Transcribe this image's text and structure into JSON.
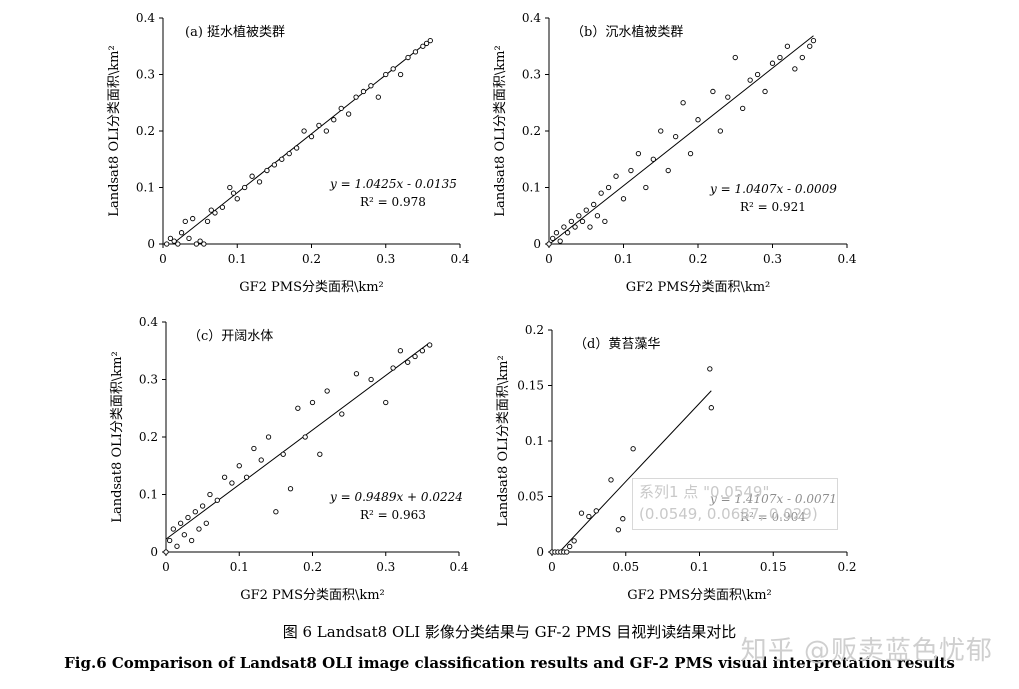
{
  "chart_data": [
    {
      "type": "scatter",
      "panel_title": "(a) 挺水植被类群",
      "xlabel": "GF2 PMS分类面积\\km²",
      "ylabel": "Landsat8 OLI分类面积\\km²",
      "xlim": [
        0,
        0.4
      ],
      "ylim": [
        0,
        0.4
      ],
      "xticks": [
        "0",
        "0.1",
        "0.2",
        "0.3",
        "0.4"
      ],
      "yticks": [
        "0",
        "0.1",
        "0.2",
        "0.3",
        "0.4"
      ],
      "trendline": {
        "slope": 1.0425,
        "intercept": -0.0135
      },
      "equation": "y = 1.0425x - 0.0135",
      "r2": "R² = 0.978",
      "points": [
        [
          0.005,
          0.0
        ],
        [
          0.01,
          0.01
        ],
        [
          0.015,
          0.005
        ],
        [
          0.02,
          0.0
        ],
        [
          0.025,
          0.02
        ],
        [
          0.03,
          0.04
        ],
        [
          0.035,
          0.01
        ],
        [
          0.04,
          0.045
        ],
        [
          0.045,
          0.0
        ],
        [
          0.05,
          0.005
        ],
        [
          0.055,
          0.0
        ],
        [
          0.06,
          0.04
        ],
        [
          0.065,
          0.06
        ],
        [
          0.07,
          0.055
        ],
        [
          0.08,
          0.065
        ],
        [
          0.09,
          0.1
        ],
        [
          0.095,
          0.09
        ],
        [
          0.1,
          0.08
        ],
        [
          0.11,
          0.1
        ],
        [
          0.12,
          0.12
        ],
        [
          0.13,
          0.11
        ],
        [
          0.14,
          0.13
        ],
        [
          0.15,
          0.14
        ],
        [
          0.16,
          0.15
        ],
        [
          0.17,
          0.16
        ],
        [
          0.18,
          0.17
        ],
        [
          0.19,
          0.2
        ],
        [
          0.2,
          0.19
        ],
        [
          0.21,
          0.21
        ],
        [
          0.22,
          0.2
        ],
        [
          0.23,
          0.22
        ],
        [
          0.24,
          0.24
        ],
        [
          0.25,
          0.23
        ],
        [
          0.26,
          0.26
        ],
        [
          0.27,
          0.27
        ],
        [
          0.28,
          0.28
        ],
        [
          0.29,
          0.26
        ],
        [
          0.3,
          0.3
        ],
        [
          0.31,
          0.31
        ],
        [
          0.32,
          0.3
        ],
        [
          0.33,
          0.33
        ],
        [
          0.34,
          0.34
        ],
        [
          0.35,
          0.35
        ],
        [
          0.355,
          0.355
        ],
        [
          0.36,
          0.36
        ]
      ]
    },
    {
      "type": "scatter",
      "panel_title": "（b）沉水植被类群",
      "xlabel": "GF2 PMS分类面积\\km²",
      "ylabel": "Landsat8 OLI分类面积\\km²",
      "xlim": [
        0,
        0.4
      ],
      "ylim": [
        0,
        0.4
      ],
      "xticks": [
        "0",
        "0.1",
        "0.2",
        "0.3",
        "0.4"
      ],
      "yticks": [
        "0",
        "0.1",
        "0.2",
        "0.3",
        "0.4"
      ],
      "trendline": {
        "slope": 1.0407,
        "intercept": -0.0009
      },
      "equation": "y = 1.0407x - 0.0009",
      "r2": "R² = 0.921",
      "points": [
        [
          0.0,
          0.0
        ],
        [
          0.005,
          0.01
        ],
        [
          0.01,
          0.02
        ],
        [
          0.015,
          0.005
        ],
        [
          0.02,
          0.03
        ],
        [
          0.025,
          0.02
        ],
        [
          0.03,
          0.04
        ],
        [
          0.035,
          0.03
        ],
        [
          0.04,
          0.05
        ],
        [
          0.045,
          0.04
        ],
        [
          0.05,
          0.06
        ],
        [
          0.055,
          0.03
        ],
        [
          0.06,
          0.07
        ],
        [
          0.065,
          0.05
        ],
        [
          0.07,
          0.09
        ],
        [
          0.075,
          0.04
        ],
        [
          0.08,
          0.1
        ],
        [
          0.09,
          0.12
        ],
        [
          0.1,
          0.08
        ],
        [
          0.11,
          0.13
        ],
        [
          0.12,
          0.16
        ],
        [
          0.13,
          0.1
        ],
        [
          0.14,
          0.15
        ],
        [
          0.15,
          0.2
        ],
        [
          0.16,
          0.13
        ],
        [
          0.17,
          0.19
        ],
        [
          0.18,
          0.25
        ],
        [
          0.19,
          0.16
        ],
        [
          0.2,
          0.22
        ],
        [
          0.22,
          0.27
        ],
        [
          0.23,
          0.2
        ],
        [
          0.24,
          0.26
        ],
        [
          0.25,
          0.33
        ],
        [
          0.26,
          0.24
        ],
        [
          0.27,
          0.29
        ],
        [
          0.28,
          0.3
        ],
        [
          0.29,
          0.27
        ],
        [
          0.3,
          0.32
        ],
        [
          0.31,
          0.33
        ],
        [
          0.32,
          0.35
        ],
        [
          0.33,
          0.31
        ],
        [
          0.34,
          0.33
        ],
        [
          0.35,
          0.35
        ],
        [
          0.355,
          0.36
        ]
      ]
    },
    {
      "type": "scatter",
      "panel_title": "（c）开阔水体",
      "xlabel": "GF2 PMS分类面积\\km²",
      "ylabel": "Landsat8 OLI分类面积\\km²",
      "xlim": [
        0,
        0.4
      ],
      "ylim": [
        0,
        0.4
      ],
      "xticks": [
        "0",
        "0.1",
        "0.2",
        "0.3",
        "0.4"
      ],
      "yticks": [
        "0",
        "0.1",
        "0.2",
        "0.3",
        "0.4"
      ],
      "trendline": {
        "slope": 0.9489,
        "intercept": 0.0224
      },
      "equation": "y = 0.9489x + 0.0224",
      "r2": "R² = 0.963",
      "points": [
        [
          0.0,
          0.0
        ],
        [
          0.005,
          0.02
        ],
        [
          0.01,
          0.04
        ],
        [
          0.015,
          0.01
        ],
        [
          0.02,
          0.05
        ],
        [
          0.025,
          0.03
        ],
        [
          0.03,
          0.06
        ],
        [
          0.035,
          0.02
        ],
        [
          0.04,
          0.07
        ],
        [
          0.045,
          0.04
        ],
        [
          0.05,
          0.08
        ],
        [
          0.055,
          0.05
        ],
        [
          0.06,
          0.1
        ],
        [
          0.07,
          0.09
        ],
        [
          0.08,
          0.13
        ],
        [
          0.09,
          0.12
        ],
        [
          0.1,
          0.15
        ],
        [
          0.11,
          0.13
        ],
        [
          0.12,
          0.18
        ],
        [
          0.13,
          0.16
        ],
        [
          0.14,
          0.2
        ],
        [
          0.15,
          0.07
        ],
        [
          0.16,
          0.17
        ],
        [
          0.17,
          0.11
        ],
        [
          0.18,
          0.25
        ],
        [
          0.19,
          0.2
        ],
        [
          0.2,
          0.26
        ],
        [
          0.21,
          0.17
        ],
        [
          0.22,
          0.28
        ],
        [
          0.24,
          0.24
        ],
        [
          0.26,
          0.31
        ],
        [
          0.28,
          0.3
        ],
        [
          0.3,
          0.26
        ],
        [
          0.31,
          0.32
        ],
        [
          0.32,
          0.35
        ],
        [
          0.33,
          0.33
        ],
        [
          0.34,
          0.34
        ],
        [
          0.35,
          0.35
        ],
        [
          0.36,
          0.36
        ]
      ]
    },
    {
      "type": "scatter",
      "panel_title": "（d）黄苔藻华",
      "xlabel": "GF2 PMS分类面积\\km²",
      "ylabel": "Landsat8 OLI分类面积\\km²",
      "xlim": [
        0,
        0.2
      ],
      "ylim": [
        0,
        0.2
      ],
      "xticks": [
        "0",
        "0.05",
        "0.1",
        "0.15",
        "0.2"
      ],
      "yticks": [
        "0",
        "0.05",
        "0.1",
        "0.15",
        "0.2"
      ],
      "trendline": {
        "slope": 1.4107,
        "intercept": -0.0071
      },
      "equation": "y = 1.4107x - 0.0071",
      "r2": "R² = 0.904",
      "points": [
        [
          0.0,
          0.0
        ],
        [
          0.002,
          0.0
        ],
        [
          0.004,
          0.0
        ],
        [
          0.006,
          0.0
        ],
        [
          0.008,
          0.0
        ],
        [
          0.01,
          0.0
        ],
        [
          0.012,
          0.005
        ],
        [
          0.015,
          0.01
        ],
        [
          0.02,
          0.035
        ],
        [
          0.025,
          0.032
        ],
        [
          0.03,
          0.037
        ],
        [
          0.04,
          0.065
        ],
        [
          0.045,
          0.02
        ],
        [
          0.048,
          0.03
        ],
        [
          0.055,
          0.093
        ],
        [
          0.107,
          0.165
        ],
        [
          0.108,
          0.13
        ]
      ]
    }
  ],
  "tooltip": {
    "line1": "系列1 点 \"0.0549\"",
    "line2": "(0.0549, 0.0687, 0.029)"
  },
  "caption_zh": "图 6 Landsat8 OLI 影像分类结果与 GF-2 PMS 目视判读结果对比",
  "caption_en": "Fig.6 Comparison of Landsat8 OLI image classification results and GF-2 PMS visual interpretation results",
  "watermark": "知乎 @贩卖蓝色忧郁"
}
